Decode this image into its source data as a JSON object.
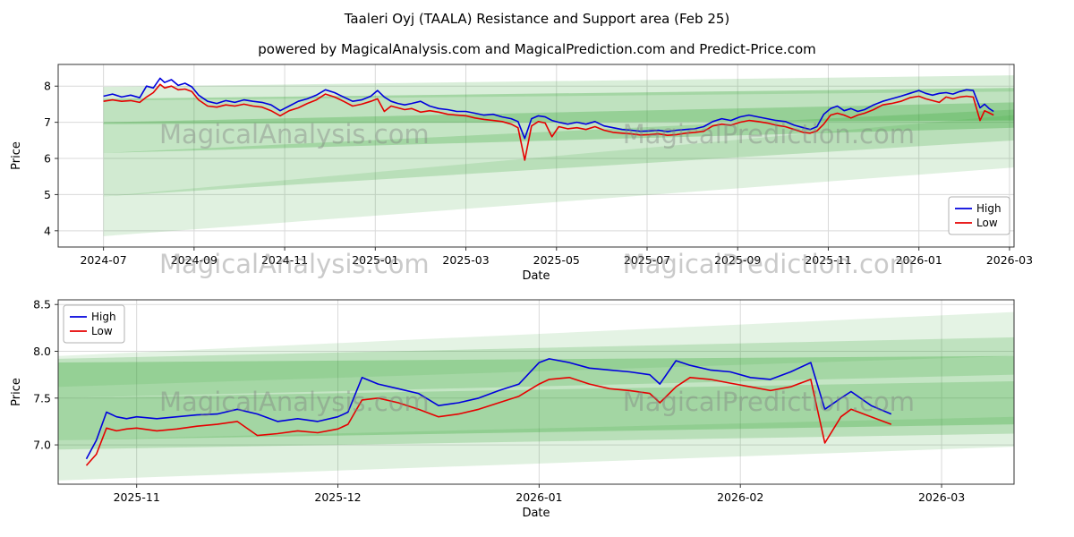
{
  "title": "Taaleri Oyj (TAALA) Resistance and Support area (Feb 25)",
  "subtitle": "powered by MagicalAnalysis.com and MagicalPrediction.com and Predict-Price.com",
  "watermarks": [
    "MagicalAnalysis.com",
    "MagicalPrediction.com"
  ],
  "colors": {
    "high": "#0000dd",
    "low": "#e60000",
    "band": "#2ca02c",
    "grid": "#d9d9d9",
    "spine": "#333333",
    "tick_text": "#000000"
  },
  "chart_data": [
    {
      "type": "line",
      "xlabel": "Date",
      "ylabel": "Price",
      "xlim": [
        -1.0,
        20.1
      ],
      "ylim": [
        3.55,
        8.6
      ],
      "legend_pos": "right-mid",
      "xticks": [
        {
          "v": 0,
          "label": "2024-07"
        },
        {
          "v": 2,
          "label": "2024-09"
        },
        {
          "v": 4,
          "label": "2024-11"
        },
        {
          "v": 6,
          "label": "2025-01"
        },
        {
          "v": 8,
          "label": "2025-03"
        },
        {
          "v": 10,
          "label": "2025-05"
        },
        {
          "v": 12,
          "label": "2025-07"
        },
        {
          "v": 14,
          "label": "2025-09"
        },
        {
          "v": 16,
          "label": "2025-11"
        },
        {
          "v": 18,
          "label": "2026-01"
        },
        {
          "v": 20,
          "label": "2026-03"
        }
      ],
      "yticks": [
        {
          "v": 4,
          "label": "4"
        },
        {
          "v": 5,
          "label": "5"
        },
        {
          "v": 6,
          "label": "6"
        },
        {
          "v": 7,
          "label": "7"
        },
        {
          "v": 8,
          "label": "8"
        }
      ],
      "x": [
        0.0,
        0.2,
        0.4,
        0.6,
        0.8,
        0.95,
        1.1,
        1.25,
        1.35,
        1.5,
        1.65,
        1.8,
        1.95,
        2.1,
        2.3,
        2.5,
        2.7,
        2.9,
        3.1,
        3.3,
        3.5,
        3.7,
        3.9,
        4.1,
        4.3,
        4.5,
        4.7,
        4.9,
        5.1,
        5.3,
        5.5,
        5.7,
        5.9,
        6.05,
        6.2,
        6.35,
        6.5,
        6.65,
        6.8,
        7.0,
        7.2,
        7.4,
        7.6,
        7.8,
        8.0,
        8.2,
        8.4,
        8.6,
        8.8,
        9.0,
        9.15,
        9.3,
        9.45,
        9.6,
        9.75,
        9.9,
        10.05,
        10.25,
        10.45,
        10.65,
        10.85,
        11.05,
        11.25,
        11.45,
        11.65,
        11.85,
        12.05,
        12.25,
        12.45,
        12.65,
        12.85,
        13.05,
        13.25,
        13.45,
        13.65,
        13.85,
        14.05,
        14.25,
        14.45,
        14.65,
        14.85,
        15.05,
        15.25,
        15.45,
        15.6,
        15.75,
        15.9,
        16.05,
        16.2,
        16.35,
        16.5,
        16.65,
        16.8,
        17.0,
        17.2,
        17.4,
        17.6,
        17.8,
        18.0,
        18.15,
        18.3,
        18.45,
        18.6,
        18.75,
        18.9,
        19.05,
        19.2,
        19.35,
        19.45,
        19.55,
        19.65
      ],
      "series": [
        {
          "name": "High",
          "color": "#0000dd",
          "values": [
            7.72,
            7.78,
            7.7,
            7.75,
            7.68,
            8.0,
            7.95,
            8.22,
            8.1,
            8.18,
            8.02,
            8.08,
            7.98,
            7.75,
            7.58,
            7.52,
            7.6,
            7.55,
            7.62,
            7.58,
            7.55,
            7.48,
            7.32,
            7.45,
            7.58,
            7.65,
            7.75,
            7.9,
            7.82,
            7.7,
            7.58,
            7.62,
            7.72,
            7.88,
            7.7,
            7.58,
            7.52,
            7.48,
            7.52,
            7.58,
            7.45,
            7.38,
            7.35,
            7.3,
            7.3,
            7.25,
            7.2,
            7.22,
            7.15,
            7.1,
            7.02,
            6.55,
            7.1,
            7.18,
            7.15,
            7.05,
            7.0,
            6.95,
            7.0,
            6.95,
            7.02,
            6.9,
            6.85,
            6.8,
            6.78,
            6.75,
            6.76,
            6.78,
            6.74,
            6.78,
            6.8,
            6.82,
            6.88,
            7.02,
            7.1,
            7.05,
            7.15,
            7.2,
            7.15,
            7.1,
            7.05,
            7.02,
            6.92,
            6.85,
            6.8,
            6.88,
            7.22,
            7.38,
            7.45,
            7.32,
            7.38,
            7.3,
            7.35,
            7.48,
            7.58,
            7.65,
            7.72,
            7.8,
            7.88,
            7.8,
            7.75,
            7.8,
            7.82,
            7.78,
            7.85,
            7.9,
            7.88,
            7.4,
            7.5,
            7.38,
            7.3
          ]
        },
        {
          "name": "Low",
          "color": "#e60000",
          "values": [
            7.58,
            7.62,
            7.58,
            7.6,
            7.55,
            7.7,
            7.82,
            8.05,
            7.95,
            8.0,
            7.9,
            7.92,
            7.85,
            7.62,
            7.45,
            7.42,
            7.48,
            7.45,
            7.5,
            7.45,
            7.42,
            7.32,
            7.18,
            7.32,
            7.4,
            7.52,
            7.62,
            7.78,
            7.7,
            7.58,
            7.45,
            7.5,
            7.58,
            7.65,
            7.3,
            7.45,
            7.4,
            7.35,
            7.38,
            7.28,
            7.32,
            7.28,
            7.22,
            7.2,
            7.18,
            7.12,
            7.08,
            7.05,
            7.02,
            6.95,
            6.85,
            5.95,
            6.9,
            7.02,
            6.98,
            6.6,
            6.88,
            6.82,
            6.85,
            6.8,
            6.88,
            6.78,
            6.72,
            6.7,
            6.68,
            6.65,
            6.66,
            6.68,
            6.64,
            6.66,
            6.7,
            6.72,
            6.75,
            6.9,
            6.95,
            6.92,
            7.0,
            7.05,
            7.02,
            6.98,
            6.92,
            6.88,
            6.8,
            6.72,
            6.7,
            6.76,
            6.95,
            7.2,
            7.25,
            7.2,
            7.12,
            7.2,
            7.25,
            7.35,
            7.48,
            7.52,
            7.58,
            7.68,
            7.72,
            7.65,
            7.6,
            7.55,
            7.7,
            7.65,
            7.7,
            7.72,
            7.7,
            7.05,
            7.32,
            7.26,
            7.2
          ]
        }
      ],
      "bands": [
        {
          "x0": 0.0,
          "x1": 20.1,
          "left": [
            3.85,
            4.95
          ],
          "right": [
            5.75,
            7.2
          ],
          "alpha": 0.15
        },
        {
          "x0": 0.0,
          "x1": 20.1,
          "left": [
            4.95,
            6.15
          ],
          "right": [
            6.5,
            7.35
          ],
          "alpha": 0.22
        },
        {
          "x0": 0.0,
          "x1": 20.1,
          "left": [
            6.15,
            7.0
          ],
          "right": [
            6.85,
            7.55
          ],
          "alpha": 0.28
        },
        {
          "x0": 0.0,
          "x1": 20.1,
          "left": [
            6.95,
            7.65
          ],
          "right": [
            7.05,
            7.95
          ],
          "alpha": 0.3
        },
        {
          "x0": 0.0,
          "x1": 20.1,
          "left": [
            7.6,
            7.98
          ],
          "right": [
            7.85,
            8.3
          ],
          "alpha": 0.18
        }
      ]
    },
    {
      "type": "line",
      "xlabel": "Date",
      "ylabel": "Price",
      "xlim": [
        -0.39,
        4.36
      ],
      "ylim": [
        6.58,
        8.55
      ],
      "legend_pos": "upper-left",
      "xticks": [
        {
          "v": 0,
          "label": "2025-11"
        },
        {
          "v": 1,
          "label": "2025-12"
        },
        {
          "v": 2,
          "label": "2026-01"
        },
        {
          "v": 3,
          "label": "2026-02"
        },
        {
          "v": 4,
          "label": "2026-03"
        }
      ],
      "yticks": [
        {
          "v": 7.0,
          "label": "7.0"
        },
        {
          "v": 7.5,
          "label": "7.5"
        },
        {
          "v": 8.0,
          "label": "8.0"
        },
        {
          "v": 8.5,
          "label": "8.5"
        }
      ],
      "x": [
        -0.25,
        -0.2,
        -0.15,
        -0.1,
        -0.05,
        0.0,
        0.1,
        0.2,
        0.3,
        0.4,
        0.5,
        0.6,
        0.7,
        0.8,
        0.9,
        1.0,
        1.05,
        1.12,
        1.2,
        1.3,
        1.4,
        1.5,
        1.6,
        1.7,
        1.8,
        1.9,
        2.0,
        2.05,
        2.15,
        2.25,
        2.35,
        2.45,
        2.55,
        2.6,
        2.68,
        2.75,
        2.85,
        2.95,
        3.05,
        3.15,
        3.25,
        3.35,
        3.42,
        3.5,
        3.55,
        3.65,
        3.75
      ],
      "series": [
        {
          "name": "High",
          "color": "#0000dd",
          "values": [
            6.85,
            7.05,
            7.35,
            7.3,
            7.28,
            7.3,
            7.28,
            7.3,
            7.32,
            7.33,
            7.38,
            7.33,
            7.25,
            7.28,
            7.25,
            7.3,
            7.35,
            7.72,
            7.65,
            7.6,
            7.55,
            7.42,
            7.45,
            7.5,
            7.58,
            7.65,
            7.88,
            7.92,
            7.88,
            7.82,
            7.8,
            7.78,
            7.75,
            7.65,
            7.9,
            7.85,
            7.8,
            7.78,
            7.72,
            7.7,
            7.78,
            7.88,
            7.38,
            7.5,
            7.57,
            7.42,
            7.33
          ]
        },
        {
          "name": "Low",
          "color": "#e60000",
          "values": [
            6.78,
            6.9,
            7.18,
            7.15,
            7.17,
            7.18,
            7.15,
            7.17,
            7.2,
            7.22,
            7.25,
            7.1,
            7.12,
            7.15,
            7.13,
            7.17,
            7.22,
            7.48,
            7.5,
            7.45,
            7.38,
            7.3,
            7.33,
            7.38,
            7.45,
            7.52,
            7.65,
            7.7,
            7.72,
            7.65,
            7.6,
            7.58,
            7.55,
            7.45,
            7.62,
            7.72,
            7.7,
            7.66,
            7.62,
            7.58,
            7.62,
            7.7,
            7.02,
            7.3,
            7.38,
            7.3,
            7.22
          ]
        }
      ],
      "bands": [
        {
          "x0": -0.39,
          "x1": 4.36,
          "left": [
            6.62,
            7.05
          ],
          "right": [
            6.98,
            7.3
          ],
          "alpha": 0.15
        },
        {
          "x0": -0.39,
          "x1": 4.36,
          "left": [
            6.95,
            7.5
          ],
          "right": [
            7.12,
            7.68
          ],
          "alpha": 0.22
        },
        {
          "x0": -0.39,
          "x1": 4.36,
          "left": [
            7.05,
            7.88
          ],
          "right": [
            7.22,
            7.95
          ],
          "alpha": 0.28
        },
        {
          "x0": -0.39,
          "x1": 4.36,
          "left": [
            7.5,
            7.92
          ],
          "right": [
            7.75,
            8.15
          ],
          "alpha": 0.2
        },
        {
          "x0": -0.39,
          "x1": 4.36,
          "left": [
            7.62,
            7.95
          ],
          "right": [
            7.95,
            8.42
          ],
          "alpha": 0.13
        }
      ]
    }
  ]
}
